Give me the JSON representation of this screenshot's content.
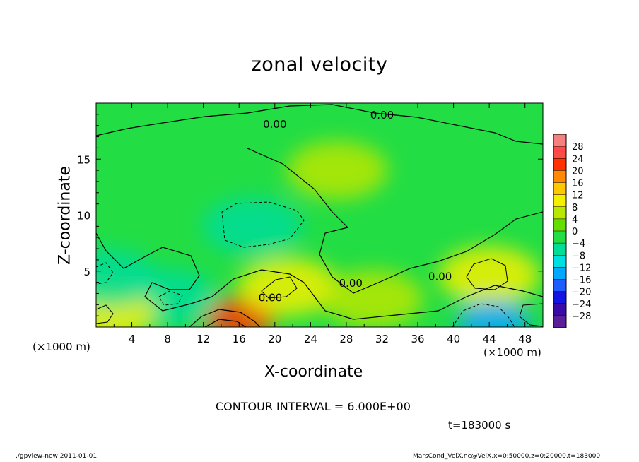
{
  "chart_data": {
    "type": "heatmap",
    "title": "zonal velocity",
    "xlabel": "X-coordinate",
    "ylabel": "Z-coordinate",
    "x_unit_label": "(×1000 m)",
    "x_unit_label_right": "(×1000 m)",
    "xlim": [
      0,
      50
    ],
    "ylim": [
      0,
      20
    ],
    "x_ticks": [
      4,
      8,
      12,
      16,
      20,
      24,
      28,
      32,
      36,
      40,
      44,
      48
    ],
    "y_ticks": [
      5,
      10,
      15
    ],
    "contour_interval": "CONTOUR INTERVAL = 6.000E+00",
    "contour_labels": [
      {
        "text": "0.00",
        "x": 19.5,
        "z": 2.3
      },
      {
        "text": "0.00",
        "x": 28.5,
        "z": 3.6
      },
      {
        "text": "0.00",
        "x": 38.5,
        "z": 4.2
      },
      {
        "text": "0.00",
        "x": 20.0,
        "z": 17.8
      },
      {
        "text": "0.00",
        "x": 32.0,
        "z": 18.6
      }
    ],
    "colorbar": {
      "levels": [
        28,
        24,
        20,
        16,
        12,
        8,
        4,
        0,
        -4,
        -8,
        -12,
        -16,
        -20,
        -24,
        -28
      ],
      "colors": [
        "#f48080",
        "#ff4a4a",
        "#ff3200",
        "#ff8a00",
        "#ffc800",
        "#f4f000",
        "#b8e800",
        "#66dd00",
        "#22dd44",
        "#00dd99",
        "#00e0e0",
        "#00a8ff",
        "#1f5cff",
        "#1414e0",
        "#3a0aa6",
        "#5a1e98"
      ]
    },
    "features": [
      {
        "kind": "low",
        "x": 17.5,
        "z": 9.0,
        "value": -8
      },
      {
        "kind": "high",
        "x": 16.0,
        "z": 0.8,
        "value": 20
      },
      {
        "kind": "high",
        "x": 21.5,
        "z": 3.6,
        "value": 8
      },
      {
        "kind": "high",
        "x": 44.0,
        "z": 4.6,
        "value": 8
      },
      {
        "kind": "low",
        "x": 44.5,
        "z": 0.5,
        "value": -14
      },
      {
        "kind": "low",
        "x": 8.0,
        "z": 2.6,
        "value": -6
      },
      {
        "kind": "high",
        "x": 1.0,
        "z": 1.2,
        "value": 10
      },
      {
        "kind": "low",
        "x": 1.2,
        "z": 4.4,
        "value": -8
      },
      {
        "kind": "high",
        "x": 27.0,
        "z": 14.0,
        "value": 6
      },
      {
        "kind": "high",
        "x": 31.0,
        "z": 2.5,
        "value": 4
      }
    ]
  },
  "annotation": {
    "time": "t=183000 s"
  },
  "footer": {
    "left": "./gpview-new  2011-01-01",
    "right": "MarsCond_VelX.nc@VelX,x=0:50000,z=0:20000,t=183000"
  }
}
